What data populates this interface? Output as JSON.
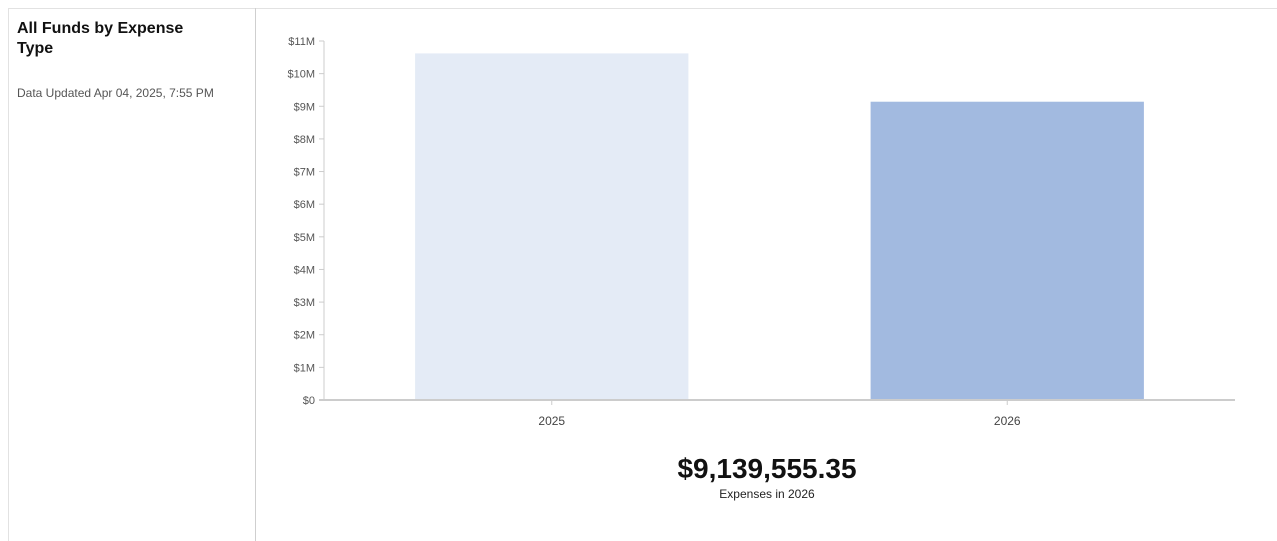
{
  "widget": {
    "title": "All Funds by Expense Type",
    "updated_label": "Data Updated",
    "updated_value": "Apr 04, 2025, 7:55 PM"
  },
  "summary": {
    "value": "$9,139,555.35",
    "label": "Expenses in 2026"
  },
  "chart_data": {
    "type": "bar",
    "categories": [
      "2025",
      "2026"
    ],
    "values": [
      10620000,
      9139555.35
    ],
    "colors": [
      "#e4ebf6",
      "#a2bae0"
    ],
    "ylim": [
      0,
      11000000
    ],
    "yticks": [
      0,
      1000000,
      2000000,
      3000000,
      4000000,
      5000000,
      6000000,
      7000000,
      8000000,
      9000000,
      10000000,
      11000000
    ],
    "ytick_labels": [
      "$0",
      "$1M",
      "$2M",
      "$3M",
      "$4M",
      "$5M",
      "$6M",
      "$7M",
      "$8M",
      "$9M",
      "$10M",
      "$11M"
    ],
    "grid": false,
    "title": "",
    "xlabel": "",
    "ylabel": ""
  }
}
